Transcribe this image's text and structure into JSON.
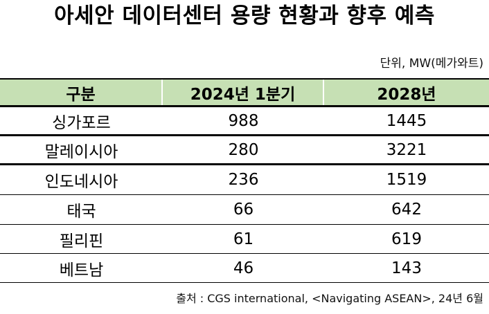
{
  "title": "아세안 데이터센터 용량 현황과 향후 예측",
  "unit_label": "단위, MW(메가와트)",
  "table": {
    "header_bg": "#c6e0b4",
    "columns": [
      "구분",
      "2024년 1분기",
      "2028년"
    ],
    "rows": [
      {
        "country": "싱가포르",
        "q1_2024": "988",
        "y2028": "1445"
      },
      {
        "country": "말레이시아",
        "q1_2024": "280",
        "y2028": "3221"
      },
      {
        "country": "인도네시아",
        "q1_2024": "236",
        "y2028": "1519"
      },
      {
        "country": "태국",
        "q1_2024": "66",
        "y2028": "642"
      },
      {
        "country": "필리핀",
        "q1_2024": "61",
        "y2028": "619"
      },
      {
        "country": "베트남",
        "q1_2024": "46",
        "y2028": "143"
      }
    ]
  },
  "source": "출처 : CGS international, <Navigating ASEAN>, 24년 6월"
}
